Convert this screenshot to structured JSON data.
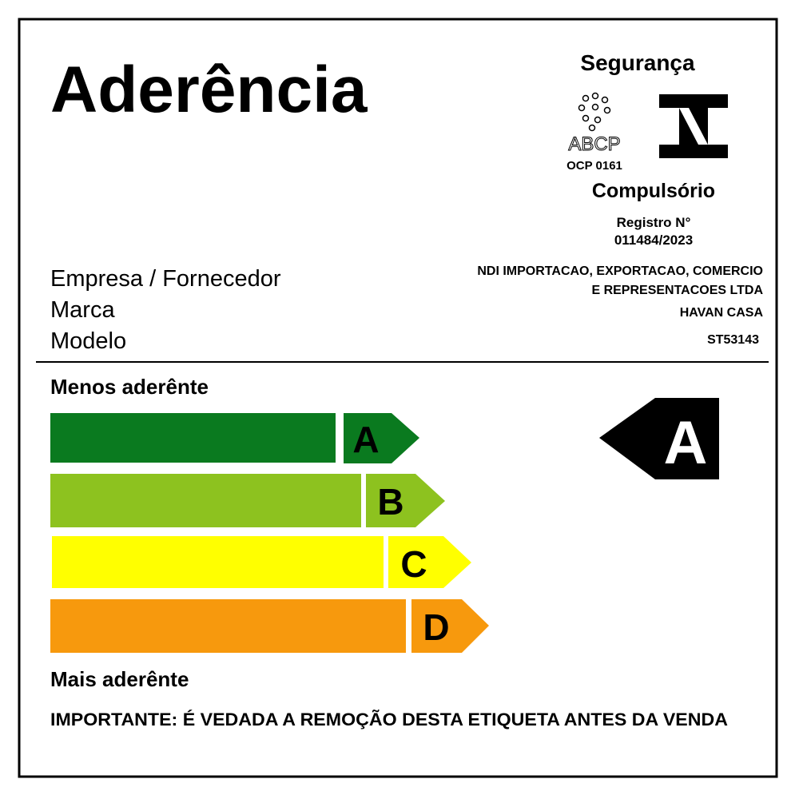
{
  "header": {
    "title": "Aderência",
    "safety": "Segurança",
    "abcp": "ABCP",
    "ocp": "OCP 0161",
    "compulsory": "Compulsório",
    "registry_label": "Registro N°",
    "registry_number": "011484/2023"
  },
  "info": {
    "labels": [
      "Empresa / Fornecedor",
      "Marca",
      "Modelo"
    ],
    "company_lines": [
      "NDI IMPORTACAO, EXPORTACAO, COMERCIO",
      "E REPRESENTACOES LTDA"
    ],
    "brand": "HAVAN CASA",
    "model": "ST53143"
  },
  "scale": {
    "top_label": "Menos aderênte",
    "classes": [
      "A",
      "B",
      "C",
      "D"
    ],
    "rating": "A",
    "bottom_label": "Mais aderênte"
  },
  "footer": {
    "notice": "IMPORTANTE: É VEDADA A REMOÇÃO DESTA ETIQUETA ANTES DA VENDA"
  }
}
